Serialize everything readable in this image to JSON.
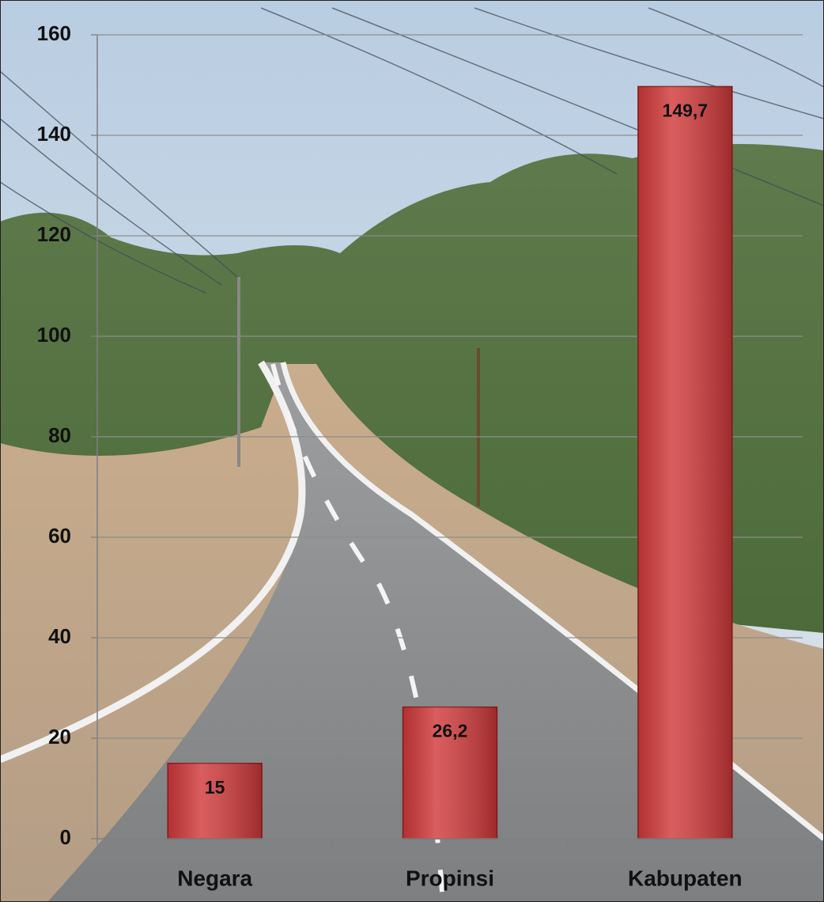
{
  "chart_data": {
    "type": "bar",
    "categories": [
      "Negara",
      "Propinsi",
      "Kabupaten"
    ],
    "values": [
      15,
      26.2,
      149.7
    ],
    "value_labels": [
      "15",
      "26,2",
      "149,7"
    ],
    "color": "#d23a3b",
    "ylim": [
      0,
      160
    ],
    "yticks": [
      0,
      20,
      40,
      60,
      80,
      100,
      120,
      140,
      160
    ],
    "grid": true
  }
}
